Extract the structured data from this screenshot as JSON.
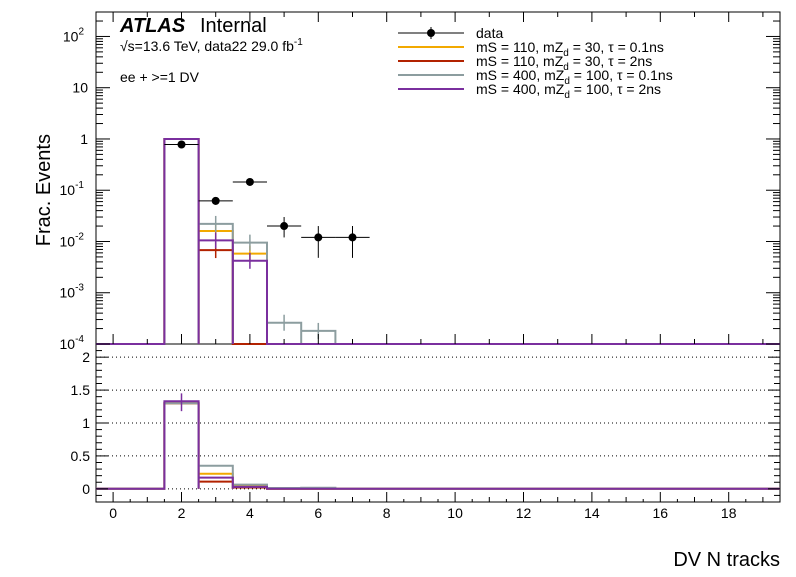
{
  "chart_data": [
    {
      "type": "histogram",
      "panel": "top",
      "ylabel": "Frac. Events",
      "y_scale": "log",
      "ylim": [
        0.0001,
        300
      ],
      "xlim": [
        -0.5,
        19.5
      ],
      "x_tick_labels": [
        "0",
        "2",
        "4",
        "6",
        "8",
        "10",
        "12",
        "14",
        "16",
        "18"
      ],
      "y_tick_labels": [
        {
          "base": "10",
          "exp": "-4",
          "value": 0.0001
        },
        {
          "base": "10",
          "exp": "-3",
          "value": 0.001
        },
        {
          "base": "10",
          "exp": "-2",
          "value": 0.01
        },
        {
          "base": "10",
          "exp": "-1",
          "value": 0.1
        },
        {
          "base": "1",
          "exp": "",
          "value": 1
        },
        {
          "base": "10",
          "exp": "",
          "value": 10
        },
        {
          "base": "10",
          "exp": "2",
          "value": 100
        }
      ],
      "atlas_label": "ATLAS",
      "atlas_status": "Internal",
      "sqrt_s_label": "√s=13.6 TeV, data22 29.0 fb",
      "lumi_exp": "-1",
      "selection_label": "ee + >=1 DV",
      "legend_position": "top-right",
      "data_points": [
        {
          "x": 2,
          "y": 0.78,
          "yerr_lo": 0.7,
          "yerr_hi": 0.86
        },
        {
          "x": 3,
          "y": 0.062,
          "yerr_lo": 0.052,
          "yerr_hi": 0.073
        },
        {
          "x": 4,
          "y": 0.145,
          "yerr_lo": 0.13,
          "yerr_hi": 0.16
        },
        {
          "x": 5,
          "y": 0.02,
          "yerr_lo": 0.012,
          "yerr_hi": 0.03
        },
        {
          "x": 6,
          "y": 0.012,
          "yerr_lo": 0.0048,
          "yerr_hi": 0.02
        },
        {
          "x": 7,
          "y": 0.012,
          "yerr_lo": 0.0048,
          "yerr_hi": 0.02
        }
      ],
      "data_legend": "data",
      "series": [
        {
          "legend": {
            "prefix": "mS = 110, mZ",
            "sub": "d",
            "suffix": " = 30, τ = 0.1ns"
          },
          "color": "#f2a900",
          "bins": [
            [
              1.5,
              2.5,
              1.0
            ],
            [
              2.5,
              3.5,
              0.016
            ],
            [
              3.5,
              4.5,
              0.0058
            ]
          ],
          "ratio_bins": [
            [
              1.5,
              2.5,
              1.3
            ],
            [
              2.5,
              3.5,
              0.23
            ],
            [
              3.5,
              4.5,
              0.04
            ]
          ]
        },
        {
          "legend": {
            "prefix": "mS = 110, mZ",
            "sub": "d",
            "suffix": " = 30, τ = 2ns"
          },
          "color": "#b22200",
          "bins": [
            [
              1.5,
              2.5,
              1.0
            ],
            [
              2.5,
              3.5,
              0.0068
            ]
          ],
          "ratio_bins": [
            [
              1.5,
              2.5,
              1.3
            ],
            [
              2.5,
              3.5,
              0.11
            ],
            [
              3.5,
              4.5,
              0.02
            ]
          ]
        },
        {
          "legend": {
            "prefix": "mS = 400, mZ",
            "sub": "d",
            "suffix": " = 100, τ = 0.1ns"
          },
          "color": "#8c9d9f",
          "bins": [
            [
              1.5,
              2.5,
              1.0
            ],
            [
              2.5,
              3.5,
              0.022
            ],
            [
              3.5,
              4.5,
              0.0095
            ],
            [
              4.5,
              5.5,
              0.00026
            ],
            [
              5.5,
              6.5,
              0.00018
            ]
          ],
          "ratio_bins": [
            [
              1.5,
              2.5,
              1.3
            ],
            [
              2.5,
              3.5,
              0.35
            ],
            [
              3.5,
              4.5,
              0.065
            ],
            [
              4.5,
              5.5,
              0.013
            ],
            [
              5.5,
              6.5,
              0.015
            ]
          ]
        },
        {
          "legend": {
            "prefix": "mS = 400, mZ",
            "sub": "d",
            "suffix": " = 100, τ = 2ns"
          },
          "color": "#7a2f9e",
          "bins": [
            [
              1.5,
              2.5,
              1.0
            ],
            [
              2.5,
              3.5,
              0.0105
            ],
            [
              3.5,
              4.5,
              0.0042
            ]
          ],
          "ratio_bins": [
            [
              1.5,
              2.5,
              1.33
            ],
            [
              2.5,
              3.5,
              0.17
            ],
            [
              3.5,
              4.5,
              0.03
            ]
          ]
        }
      ]
    },
    {
      "type": "histogram",
      "panel": "ratio",
      "xlabel": "DV N tracks",
      "ylim": [
        -0.2,
        2.2
      ],
      "y_tick_labels": [
        "0",
        "0.5",
        "1",
        "1.5",
        "2"
      ],
      "y_tick_values": [
        0,
        0.5,
        1,
        1.5,
        2
      ],
      "grid": "horizontal dotted",
      "ratio_error_bar": {
        "x": 2,
        "y": 1.3,
        "yerr_lo": 1.18,
        "yerr_hi": 1.45
      }
    }
  ]
}
